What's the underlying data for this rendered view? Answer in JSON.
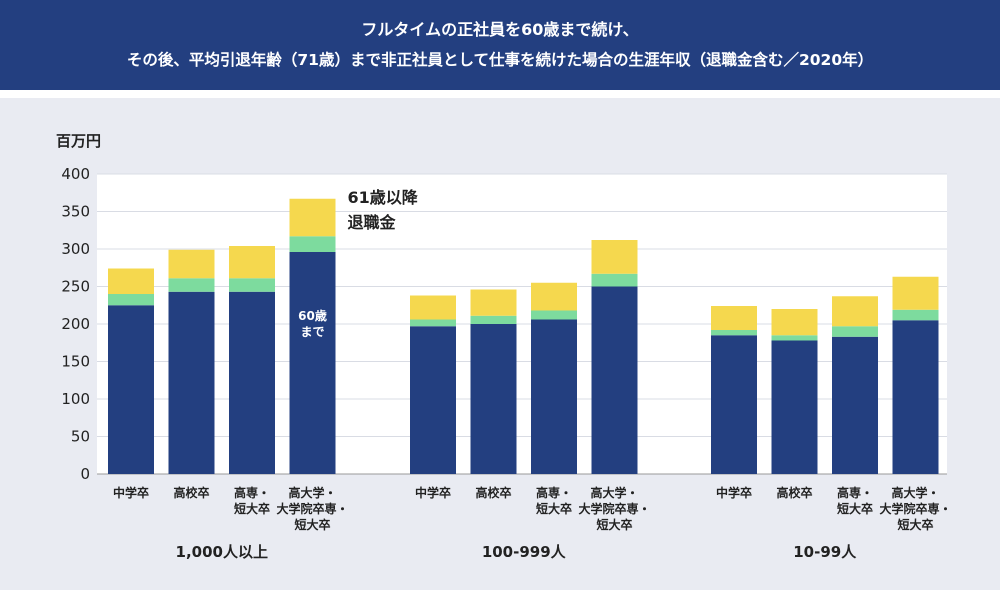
{
  "header": {
    "title_line1": "フルタイムの正社員を60歳まで続け、",
    "title_line2": "その後、平均引退年齢（71歳）まで非正社員として仕事を続けた場合の生涯年収（退職金含む／2020年）"
  },
  "chart_data": {
    "type": "bar",
    "stacked": true,
    "ylabel": "百万円",
    "ylim": [
      0,
      400
    ],
    "yticks": [
      0,
      50,
      100,
      150,
      200,
      250,
      300,
      350,
      400
    ],
    "grid": true,
    "colors": {
      "until60": "#233f80",
      "after61": "#7ddb9e",
      "retirement": "#f5d84e"
    },
    "annotations": {
      "series_label_lines": [
        "61歳以降",
        "退職金"
      ],
      "in_bar_label_lines": [
        "60歳",
        "まで"
      ]
    },
    "groups": [
      {
        "name": "1,000人以上",
        "categories": [
          [
            "中学卒"
          ],
          [
            "高校卒"
          ],
          [
            "高専・",
            "短大卒"
          ],
          [
            "高大学・",
            "大学院卒専・",
            "短大卒"
          ]
        ],
        "series": [
          {
            "values": [
              225,
              243,
              243,
              296
            ]
          },
          {
            "values": [
              15,
              18,
              18,
              21
            ]
          },
          {
            "values": [
              34,
              38,
              43,
              50
            ]
          }
        ]
      },
      {
        "name": "100-999人",
        "categories": [
          [
            "中学卒"
          ],
          [
            "高校卒"
          ],
          [
            "高専・",
            "短大卒"
          ],
          [
            "高大学・",
            "大学院卒専・",
            "短大卒"
          ]
        ],
        "series": [
          {
            "values": [
              197,
              200,
              206,
              250
            ]
          },
          {
            "values": [
              9,
              11,
              12,
              17
            ]
          },
          {
            "values": [
              32,
              35,
              37,
              45
            ]
          }
        ]
      },
      {
        "name": "10-99人",
        "categories": [
          [
            "中学卒"
          ],
          [
            "高校卒"
          ],
          [
            "高専・",
            "短大卒"
          ],
          [
            "高大学・",
            "大学院卒専・",
            "短大卒"
          ]
        ],
        "series": [
          {
            "values": [
              185,
              178,
              183,
              205
            ]
          },
          {
            "values": [
              7,
              7,
              14,
              14
            ]
          },
          {
            "values": [
              32,
              35,
              40,
              44
            ]
          }
        ]
      }
    ]
  }
}
